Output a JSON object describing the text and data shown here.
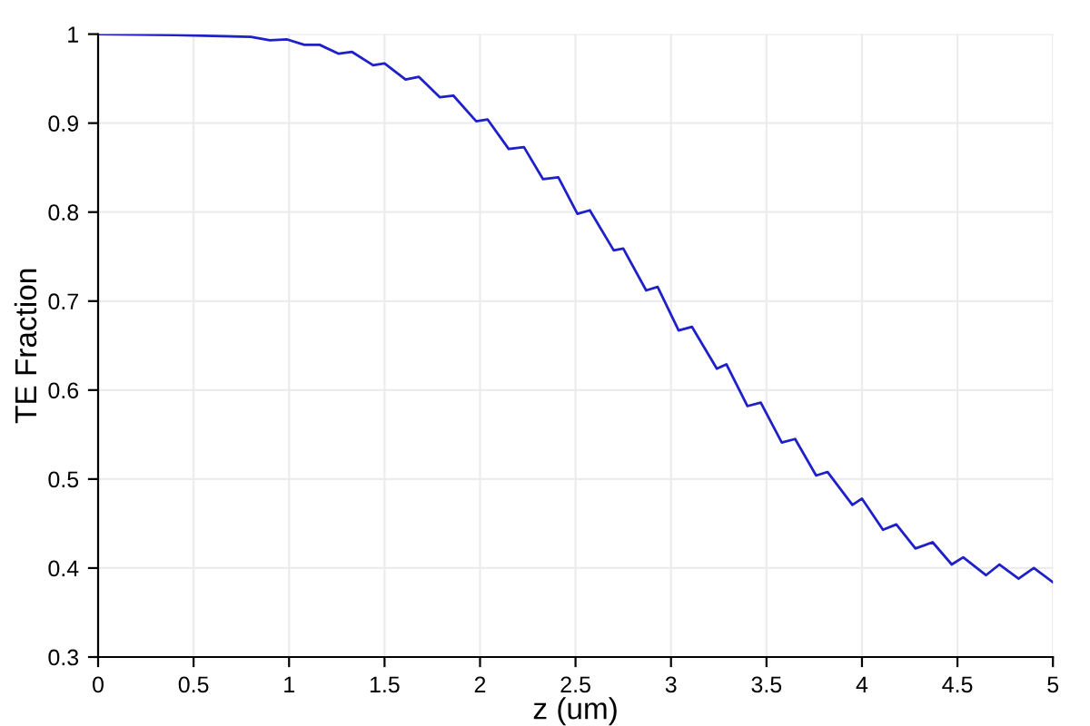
{
  "chart_data": {
    "type": "line",
    "xlabel": "z (um)",
    "ylabel": "TE Fraction",
    "xlim": [
      0,
      5
    ],
    "ylim": [
      0.3,
      1
    ],
    "xticks": [
      0,
      0.5,
      1,
      1.5,
      2,
      2.5,
      3,
      3.5,
      4,
      4.5,
      5
    ],
    "yticks": [
      0.3,
      0.4,
      0.5,
      0.6,
      0.7,
      0.8,
      0.9,
      1
    ],
    "grid": true,
    "marker": "none",
    "line_style": "solid",
    "series": [
      {
        "color": "#2020c8",
        "x": [
          0,
          0.4,
          0.8,
          0.9,
          0.99,
          1.08,
          1.16,
          1.26,
          1.33,
          1.44,
          1.5,
          1.61,
          1.68,
          1.79,
          1.86,
          1.98,
          2.04,
          2.15,
          2.23,
          2.33,
          2.41,
          2.51,
          2.575,
          2.7,
          2.75,
          2.87,
          2.93,
          3.04,
          3.11,
          3.24,
          3.29,
          3.4,
          3.47,
          3.58,
          3.65,
          3.76,
          3.82,
          3.95,
          4.0,
          4.11,
          4.18,
          4.28,
          4.37,
          4.47,
          4.53,
          4.65,
          4.72,
          4.82,
          4.9,
          5.0
        ],
        "values": [
          1.0,
          0.999,
          0.997,
          0.993,
          0.994,
          0.988,
          0.988,
          0.978,
          0.98,
          0.965,
          0.967,
          0.949,
          0.952,
          0.929,
          0.931,
          0.902,
          0.904,
          0.871,
          0.873,
          0.837,
          0.839,
          0.798,
          0.802,
          0.757,
          0.759,
          0.712,
          0.716,
          0.667,
          0.671,
          0.624,
          0.629,
          0.582,
          0.586,
          0.541,
          0.545,
          0.504,
          0.508,
          0.471,
          0.478,
          0.443,
          0.449,
          0.422,
          0.429,
          0.404,
          0.412,
          0.392,
          0.404,
          0.388,
          0.4,
          0.384
        ]
      }
    ]
  }
}
